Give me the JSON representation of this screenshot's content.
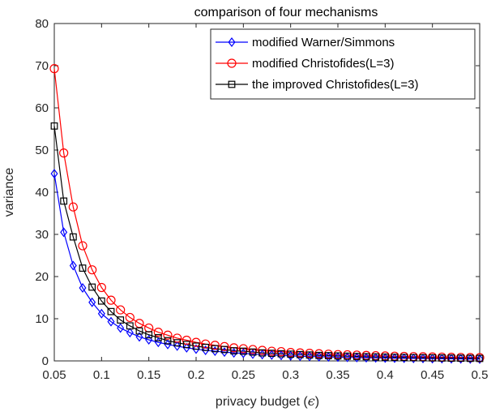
{
  "chart_data": {
    "type": "line",
    "title": "comparison of four mechanisms",
    "xlabel": "privacy budget (",
    "xlabel_symbol": "ϵ",
    "xlabel_close": ")",
    "ylabel": "variance",
    "xlim": [
      0.05,
      0.5
    ],
    "ylim": [
      0,
      80
    ],
    "xticks": [
      "0.05",
      "0.1",
      "0.15",
      "0.2",
      "0.25",
      "0.3",
      "0.35",
      "0.4",
      "0.45",
      "0.5"
    ],
    "yticks": [
      "0",
      "10",
      "20",
      "30",
      "40",
      "50",
      "60",
      "70",
      "80"
    ],
    "grid": false,
    "legend_position": "top-right",
    "x": [
      0.05,
      0.06,
      0.07,
      0.08,
      0.09,
      0.1,
      0.11,
      0.12,
      0.13,
      0.14,
      0.15,
      0.16,
      0.17,
      0.18,
      0.19,
      0.2,
      0.21,
      0.22,
      0.23,
      0.24,
      0.25,
      0.26,
      0.27,
      0.28,
      0.29,
      0.3,
      0.31,
      0.32,
      0.33,
      0.34,
      0.35,
      0.36,
      0.37,
      0.38,
      0.39,
      0.4,
      0.41,
      0.42,
      0.43,
      0.44,
      0.45,
      0.46,
      0.47,
      0.48,
      0.49,
      0.5
    ],
    "series": [
      {
        "name": "modified Warner/Simmons",
        "color": "#0000ff",
        "marker": "diamond",
        "values": [
          44.4,
          30.5,
          22.6,
          17.3,
          13.9,
          11.2,
          9.3,
          7.8,
          6.7,
          5.7,
          5.0,
          4.4,
          3.9,
          3.5,
          3.1,
          2.8,
          2.5,
          2.3,
          2.1,
          1.9,
          1.8,
          1.6,
          1.5,
          1.4,
          1.3,
          1.2,
          1.1,
          1.05,
          0.99,
          0.93,
          0.88,
          0.83,
          0.79,
          0.75,
          0.71,
          0.68,
          0.65,
          0.62,
          0.59,
          0.57,
          0.54,
          0.52,
          0.5,
          0.48,
          0.46,
          0.44
        ]
      },
      {
        "name": "modified Christofides(L=3)",
        "color": "#ff0000",
        "marker": "circle",
        "values": [
          69.3,
          49.3,
          36.5,
          27.3,
          21.6,
          17.4,
          14.4,
          12.1,
          10.3,
          8.9,
          7.8,
          6.8,
          6.1,
          5.4,
          4.9,
          4.4,
          4.0,
          3.7,
          3.4,
          3.1,
          2.9,
          2.7,
          2.5,
          2.3,
          2.2,
          2.0,
          1.9,
          1.8,
          1.7,
          1.6,
          1.5,
          1.45,
          1.38,
          1.3,
          1.24,
          1.18,
          1.12,
          1.07,
          1.02,
          0.98,
          0.94,
          0.9,
          0.86,
          0.83,
          0.8,
          0.77
        ]
      },
      {
        "name": "the improved Christofides(L=3)",
        "color": "#000000",
        "marker": "square",
        "values": [
          55.7,
          37.9,
          29.4,
          22.0,
          17.5,
          14.2,
          11.7,
          9.7,
          8.3,
          7.1,
          6.2,
          5.5,
          4.8,
          4.3,
          3.9,
          3.5,
          3.2,
          2.9,
          2.7,
          2.4,
          2.3,
          2.1,
          1.9,
          1.8,
          1.7,
          1.6,
          1.5,
          1.4,
          1.3,
          1.25,
          1.18,
          1.12,
          1.06,
          1.0,
          0.95,
          0.9,
          0.86,
          0.82,
          0.78,
          0.75,
          0.72,
          0.69,
          0.66,
          0.64,
          0.61,
          0.59
        ]
      }
    ]
  }
}
